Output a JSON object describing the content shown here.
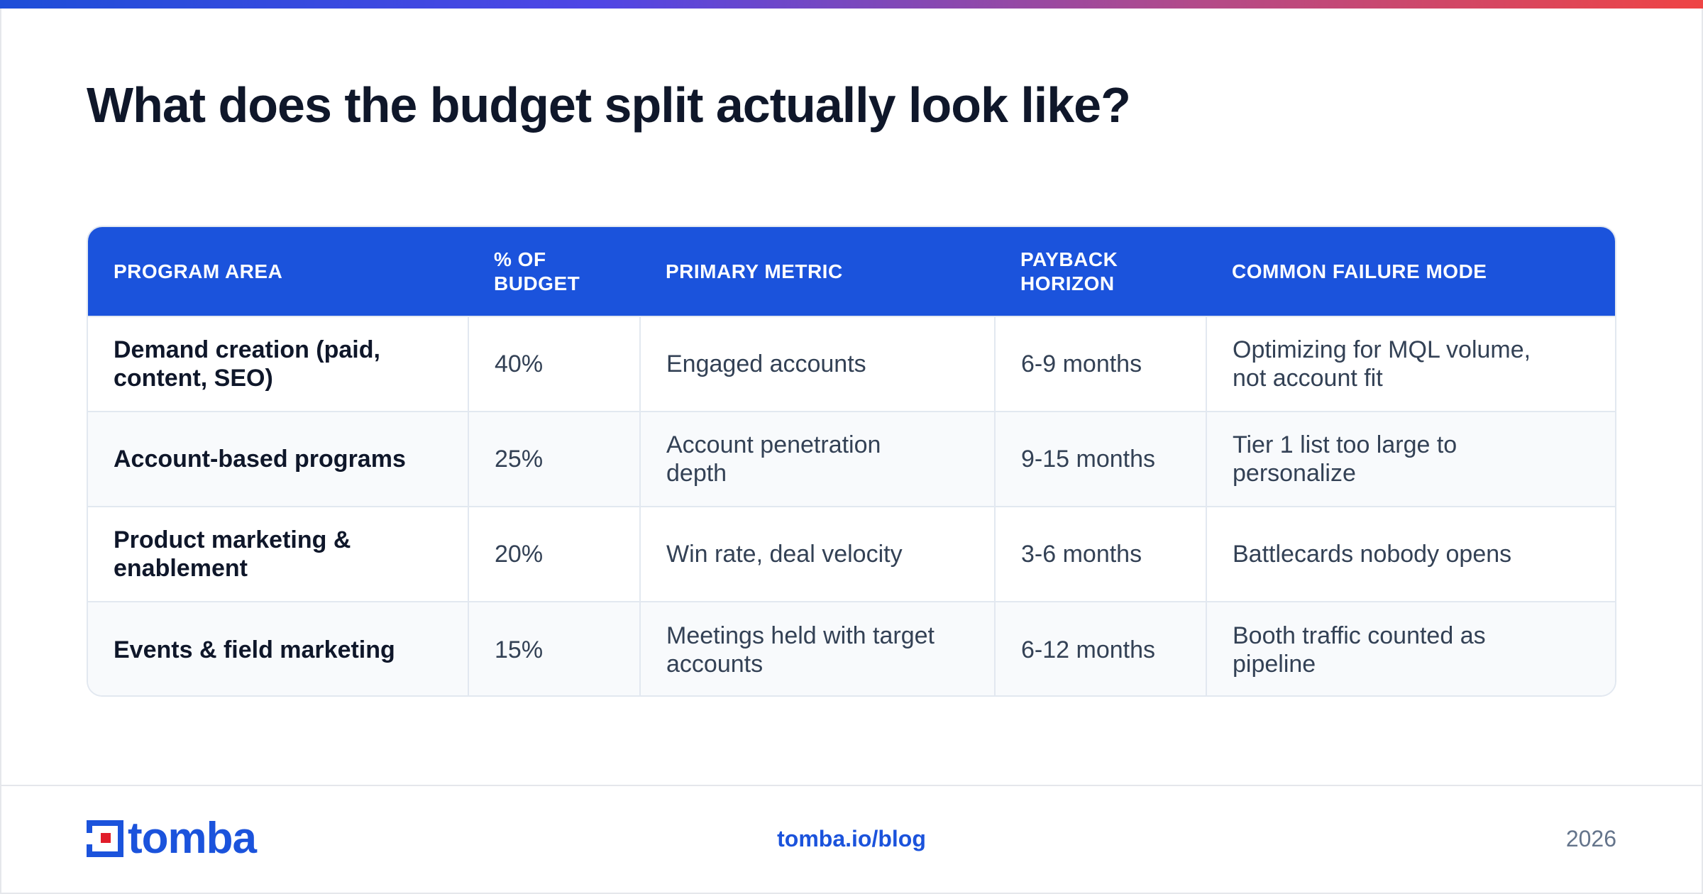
{
  "title": "What does the budget split actually look like?",
  "table": {
    "headers": [
      "PROGRAM AREA",
      "% OF BUDGET",
      "PRIMARY METRIC",
      "PAYBACK HORIZON",
      "COMMON FAILURE MODE"
    ],
    "rows": [
      [
        "Demand creation (paid, content, SEO)",
        "40%",
        "Engaged accounts",
        "6-9 months",
        "Optimizing for MQL volume, not account fit"
      ],
      [
        "Account-based programs",
        "25%",
        "Account penetration depth",
        "9-15 months",
        "Tier 1 list too large to personalize"
      ],
      [
        "Product marketing & enablement",
        "20%",
        "Win rate, deal velocity",
        "3-6 months",
        "Battlecards nobody opens"
      ],
      [
        "Events & field marketing",
        "15%",
        "Meetings held with target accounts",
        "6-12 months",
        "Booth traffic counted as pipeline"
      ]
    ]
  },
  "footer": {
    "logo": "tomba",
    "link": "tomba.io/blog",
    "year": "2026"
  },
  "colors": {
    "accent": "#1b53dc",
    "title": "#0f172a",
    "body_text": "#334155",
    "gradient": [
      "#1d4ed8",
      "#4f46e5",
      "#b24a8a",
      "#ef4444"
    ],
    "logo_red": "#e11d2a"
  },
  "icons": [
    "tomba-logo-icon"
  ]
}
